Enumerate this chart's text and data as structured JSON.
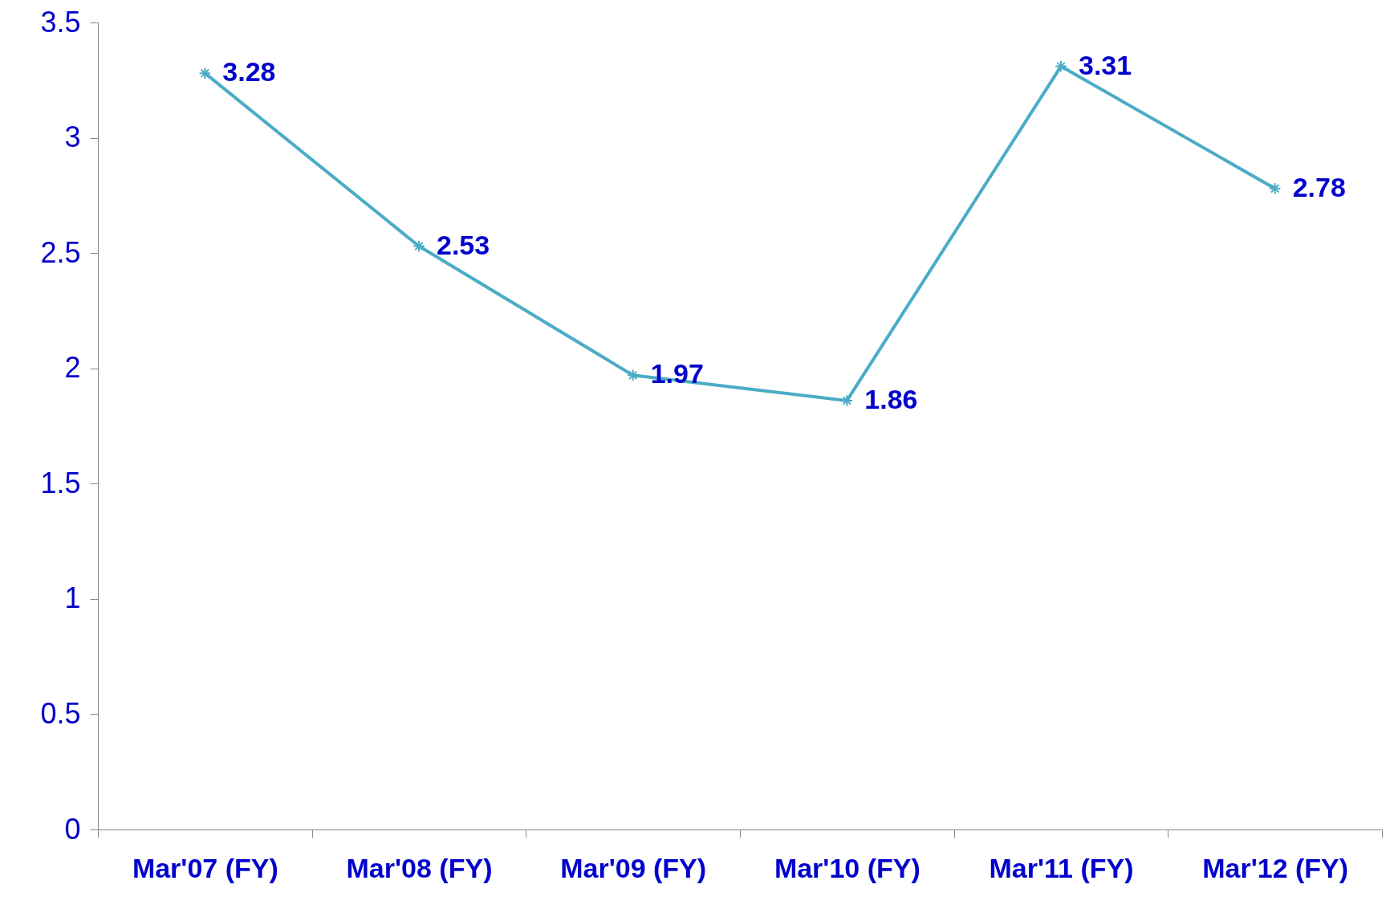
{
  "chart_data": {
    "type": "line",
    "categories": [
      "Mar'07 (FY)",
      "Mar'08 (FY)",
      "Mar'09 (FY)",
      "Mar'10 (FY)",
      "Mar'11 (FY)",
      "Mar'12 (FY)"
    ],
    "series": [
      {
        "color": "#4bacc6",
        "values": [
          3.28,
          2.53,
          1.97,
          1.86,
          3.31,
          2.78
        ]
      }
    ],
    "ylim": [
      0,
      3.5
    ],
    "yticks": [
      0,
      0.5,
      1,
      1.5,
      2,
      2.5,
      3,
      3.5
    ],
    "data_labels": true,
    "marker": "cross",
    "grid": false
  }
}
